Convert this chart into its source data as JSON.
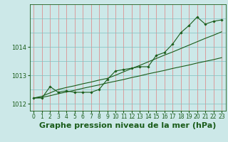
{
  "title": "Graphe pression niveau de la mer (hPa)",
  "bg_color": "#cce8e8",
  "grid_color_v": "#e08080",
  "grid_color_h": "#7fbfbf",
  "line_color": "#1a5c1a",
  "x_labels": [
    "0",
    "1",
    "2",
    "3",
    "4",
    "5",
    "6",
    "7",
    "8",
    "9",
    "10",
    "11",
    "12",
    "13",
    "14",
    "15",
    "16",
    "17",
    "18",
    "19",
    "20",
    "21",
    "22",
    "23"
  ],
  "main_data": [
    1012.2,
    1012.2,
    1012.6,
    1012.4,
    1012.45,
    1012.4,
    1012.4,
    1012.4,
    1012.5,
    1012.85,
    1013.15,
    1013.2,
    1013.25,
    1013.3,
    1013.3,
    1013.7,
    1013.8,
    1014.1,
    1014.5,
    1014.75,
    1015.05,
    1014.8,
    1014.9,
    1014.95
  ],
  "trend1": [
    1012.2,
    1012.22,
    1012.28,
    1012.35,
    1012.41,
    1012.47,
    1012.54,
    1012.6,
    1012.66,
    1012.73,
    1012.79,
    1012.85,
    1012.92,
    1012.98,
    1013.05,
    1013.11,
    1013.17,
    1013.24,
    1013.3,
    1013.36,
    1013.43,
    1013.49,
    1013.55,
    1013.62
  ],
  "trend2": [
    1012.2,
    1012.26,
    1012.38,
    1012.5,
    1012.57,
    1012.63,
    1012.7,
    1012.76,
    1012.83,
    1012.89,
    1013.0,
    1013.12,
    1013.24,
    1013.35,
    1013.47,
    1013.59,
    1013.71,
    1013.82,
    1013.94,
    1014.06,
    1014.18,
    1014.3,
    1014.41,
    1014.53
  ],
  "ylim": [
    1011.75,
    1015.5
  ],
  "yticks": [
    1012,
    1013,
    1014
  ],
  "ylabel_fontsize": 6,
  "xlabel_fontsize": 5.5,
  "title_fontsize": 8.0
}
